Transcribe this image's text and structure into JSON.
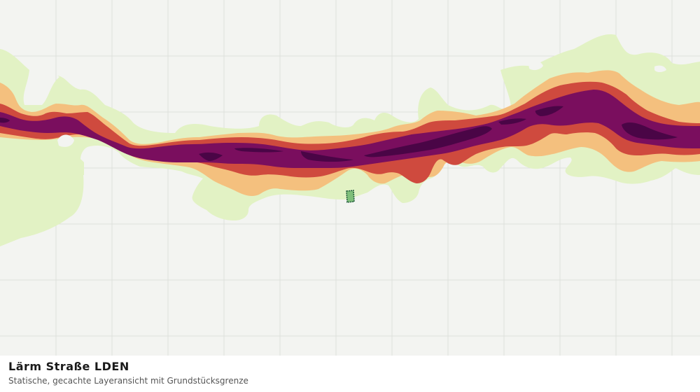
{
  "map": {
    "layer_title": "Lärm Straße LDEN",
    "layer_subtitle": "Statische, gecachte Layeransicht mit Grundstücksgrenze",
    "colors": {
      "background": "#f3f4f1",
      "grid": "#dddfdc",
      "band_light_green": "#e2f2c4",
      "band_orange": "#f4c07e",
      "band_red": "#cf4a3e",
      "band_purple": "#7a0e5e",
      "band_dark_purple": "#4a0546",
      "parcel_fill": "#7fbf7a",
      "parcel_stroke": "#1f5a3a"
    }
  }
}
